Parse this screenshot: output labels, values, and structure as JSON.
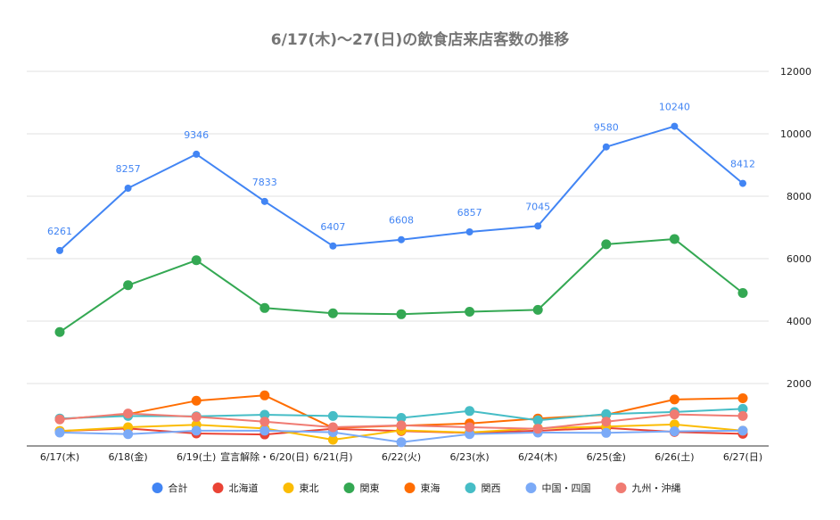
{
  "chart_data": {
    "type": "line",
    "title": "6/17(木)〜27(日)の飲食店来店客数の推移",
    "xlabel": "",
    "ylabel": "",
    "ylim": [
      0,
      12000
    ],
    "yticks": [
      2000,
      4000,
      6000,
      8000,
      10000,
      12000
    ],
    "y_axis_side": "right",
    "grid": true,
    "legend_position": "bottom",
    "categories": [
      "6/17(木)",
      "6/18(金)",
      "6/19(土)",
      "宣言解除・6/20(日)",
      "6/21(月)",
      "6/22(火)",
      "6/23(水)",
      "6/24(木)",
      "6/25(金)",
      "6/26(土)",
      "6/27(日)"
    ],
    "series": [
      {
        "name": "合計",
        "color": "#4285f4",
        "show_labels": true,
        "values": [
          6261,
          8257,
          9346,
          7833,
          6407,
          6608,
          6857,
          7045,
          9580,
          10240,
          8412
        ]
      },
      {
        "name": "北海道",
        "color": "#ea4335",
        "show_labels": false,
        "values": [
          480,
          560,
          400,
          370,
          550,
          480,
          420,
          490,
          580,
          450,
          390
        ]
      },
      {
        "name": "東北",
        "color": "#fbbc04",
        "show_labels": false,
        "values": [
          480,
          600,
          680,
          560,
          200,
          500,
          430,
          570,
          620,
          690,
          490
        ]
      },
      {
        "name": "関東",
        "color": "#34a853",
        "show_labels": false,
        "values": [
          3650,
          5150,
          5950,
          4420,
          4250,
          4220,
          4300,
          4360,
          6460,
          6630,
          4900
        ]
      },
      {
        "name": "東海",
        "color": "#ff6d01",
        "show_labels": false,
        "values": [
          860,
          1020,
          1450,
          1620,
          580,
          650,
          720,
          880,
          1000,
          1490,
          1530
        ]
      },
      {
        "name": "関西",
        "color": "#46bdc6",
        "show_labels": false,
        "values": [
          880,
          960,
          950,
          1000,
          960,
          900,
          1120,
          820,
          1020,
          1090,
          1190
        ]
      },
      {
        "name": "中国・四国",
        "color": "#7baaf7",
        "show_labels": false,
        "values": [
          430,
          380,
          490,
          490,
          440,
          120,
          380,
          430,
          420,
          470,
          490
        ]
      },
      {
        "name": "九州・沖縄",
        "color": "#f07b72",
        "show_labels": false,
        "values": [
          850,
          1040,
          930,
          780,
          600,
          660,
          600,
          550,
          780,
          1010,
          960
        ]
      }
    ]
  }
}
